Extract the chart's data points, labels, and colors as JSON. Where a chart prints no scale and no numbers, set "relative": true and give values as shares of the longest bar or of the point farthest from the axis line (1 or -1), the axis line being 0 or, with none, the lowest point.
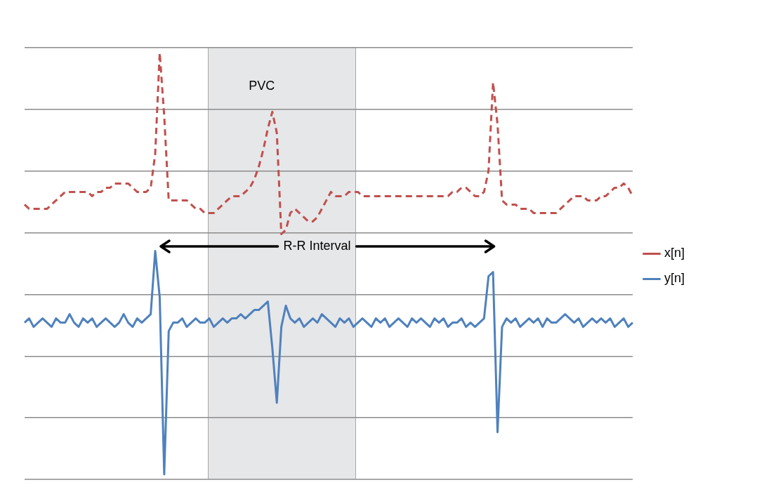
{
  "chart_data": {
    "type": "line",
    "relative": true,
    "grid": "y",
    "legend": "right",
    "marker": "none",
    "categories": [
      null,
      null,
      null,
      null,
      null,
      null,
      null,
      null,
      null,
      null,
      null,
      null,
      null,
      null,
      null,
      null,
      null,
      null,
      null,
      null,
      null,
      null,
      null,
      null,
      null,
      null,
      null,
      null,
      null,
      null,
      null,
      null,
      null,
      null,
      null,
      null,
      null,
      null,
      null,
      null,
      null,
      null,
      null,
      null,
      null,
      null,
      null,
      null,
      null,
      null,
      null,
      null,
      null,
      null,
      null,
      null,
      null,
      null,
      null,
      null,
      null,
      null,
      null,
      null,
      null,
      null,
      null,
      null,
      null,
      null,
      null,
      null,
      null,
      null,
      null,
      null,
      null,
      null,
      null,
      null,
      null,
      null,
      null,
      null,
      null,
      null,
      null,
      null,
      null,
      null,
      null,
      null,
      null,
      null,
      null,
      null,
      null,
      null,
      null,
      null,
      null,
      null,
      null,
      null,
      null,
      null,
      null,
      null,
      null,
      null,
      null,
      null,
      null,
      null,
      null,
      null,
      null,
      null,
      null,
      null,
      null,
      null,
      null,
      null,
      null,
      null,
      null,
      null,
      null,
      null,
      null,
      null,
      null,
      null,
      null,
      null
    ],
    "series": [
      {
        "name": "x[n]",
        "color": "#c0504d",
        "line_style": "dashed",
        "values": [
          0.64,
          0.63,
          0.63,
          0.63,
          0.63,
          0.63,
          0.64,
          0.65,
          0.66,
          0.67,
          0.67,
          0.67,
          0.67,
          0.67,
          0.67,
          0.66,
          0.67,
          0.67,
          0.68,
          0.68,
          0.69,
          0.69,
          0.69,
          0.69,
          0.68,
          0.67,
          0.67,
          0.67,
          0.68,
          0.76,
          1,
          0.85,
          0.65,
          0.65,
          0.65,
          0.65,
          0.65,
          0.64,
          0.63,
          0.63,
          0.62,
          0.62,
          0.62,
          0.63,
          0.64,
          0.65,
          0.66,
          0.66,
          0.66,
          0.67,
          0.68,
          0.7,
          0.73,
          0.77,
          0.82,
          0.86,
          0.81,
          0.57,
          0.58,
          0.62,
          0.63,
          0.62,
          0.61,
          0.6,
          0.6,
          0.61,
          0.63,
          0.65,
          0.67,
          0.66,
          0.66,
          0.66,
          0.67,
          0.67,
          0.67,
          0.66,
          0.66,
          0.66,
          0.66,
          0.66,
          0.66,
          0.66,
          0.66,
          0.66,
          0.66,
          0.66,
          0.66,
          0.66,
          0.66,
          0.66,
          0.66,
          0.66,
          0.66,
          0.66,
          0.66,
          0.67,
          0.67,
          0.68,
          0.68,
          0.67,
          0.66,
          0.66,
          0.67,
          0.72,
          0.93,
          0.83,
          0.65,
          0.64,
          0.64,
          0.64,
          0.63,
          0.63,
          0.63,
          0.62,
          0.62,
          0.62,
          0.62,
          0.62,
          0.62,
          0.63,
          0.64,
          0.65,
          0.66,
          0.66,
          0.66,
          0.65,
          0.65,
          0.65,
          0.66,
          0.66,
          0.67,
          0.68,
          0.68,
          0.69,
          0.68,
          0.66
        ]
      },
      {
        "name": "y[n]",
        "color": "#4f81bd",
        "line_style": "solid",
        "values": [
          0.36,
          0.37,
          0.35,
          0.36,
          0.37,
          0.36,
          0.35,
          0.37,
          0.36,
          0.36,
          0.38,
          0.36,
          0.35,
          0.37,
          0.36,
          0.37,
          0.35,
          0.36,
          0.37,
          0.36,
          0.35,
          0.36,
          0.38,
          0.36,
          0.35,
          0.37,
          0.36,
          0.37,
          0.38,
          0.53,
          0.42,
          0,
          0.34,
          0.36,
          0.36,
          0.37,
          0.35,
          0.36,
          0.37,
          0.36,
          0.36,
          0.37,
          0.35,
          0.36,
          0.37,
          0.36,
          0.37,
          0.37,
          0.38,
          0.37,
          0.38,
          0.39,
          0.39,
          0.4,
          0.41,
          0.3,
          0.17,
          0.35,
          0.4,
          0.37,
          0.36,
          0.37,
          0.35,
          0.36,
          0.37,
          0.36,
          0.38,
          0.37,
          0.36,
          0.35,
          0.37,
          0.36,
          0.37,
          0.35,
          0.36,
          0.37,
          0.36,
          0.35,
          0.37,
          0.36,
          0.37,
          0.35,
          0.36,
          0.37,
          0.36,
          0.35,
          0.37,
          0.36,
          0.37,
          0.36,
          0.35,
          0.37,
          0.36,
          0.37,
          0.35,
          0.36,
          0.36,
          0.37,
          0.35,
          0.36,
          0.35,
          0.36,
          0.37,
          0.47,
          0.48,
          0.1,
          0.35,
          0.37,
          0.36,
          0.37,
          0.35,
          0.36,
          0.37,
          0.36,
          0.37,
          0.35,
          0.37,
          0.36,
          0.36,
          0.37,
          0.38,
          0.37,
          0.36,
          0.37,
          0.35,
          0.36,
          0.37,
          0.36,
          0.37,
          0.36,
          0.37,
          0.35,
          0.36,
          0.37,
          0.35,
          0.36
        ]
      }
    ],
    "annotations": [
      "PVC",
      "R-R Interval"
    ]
  }
}
